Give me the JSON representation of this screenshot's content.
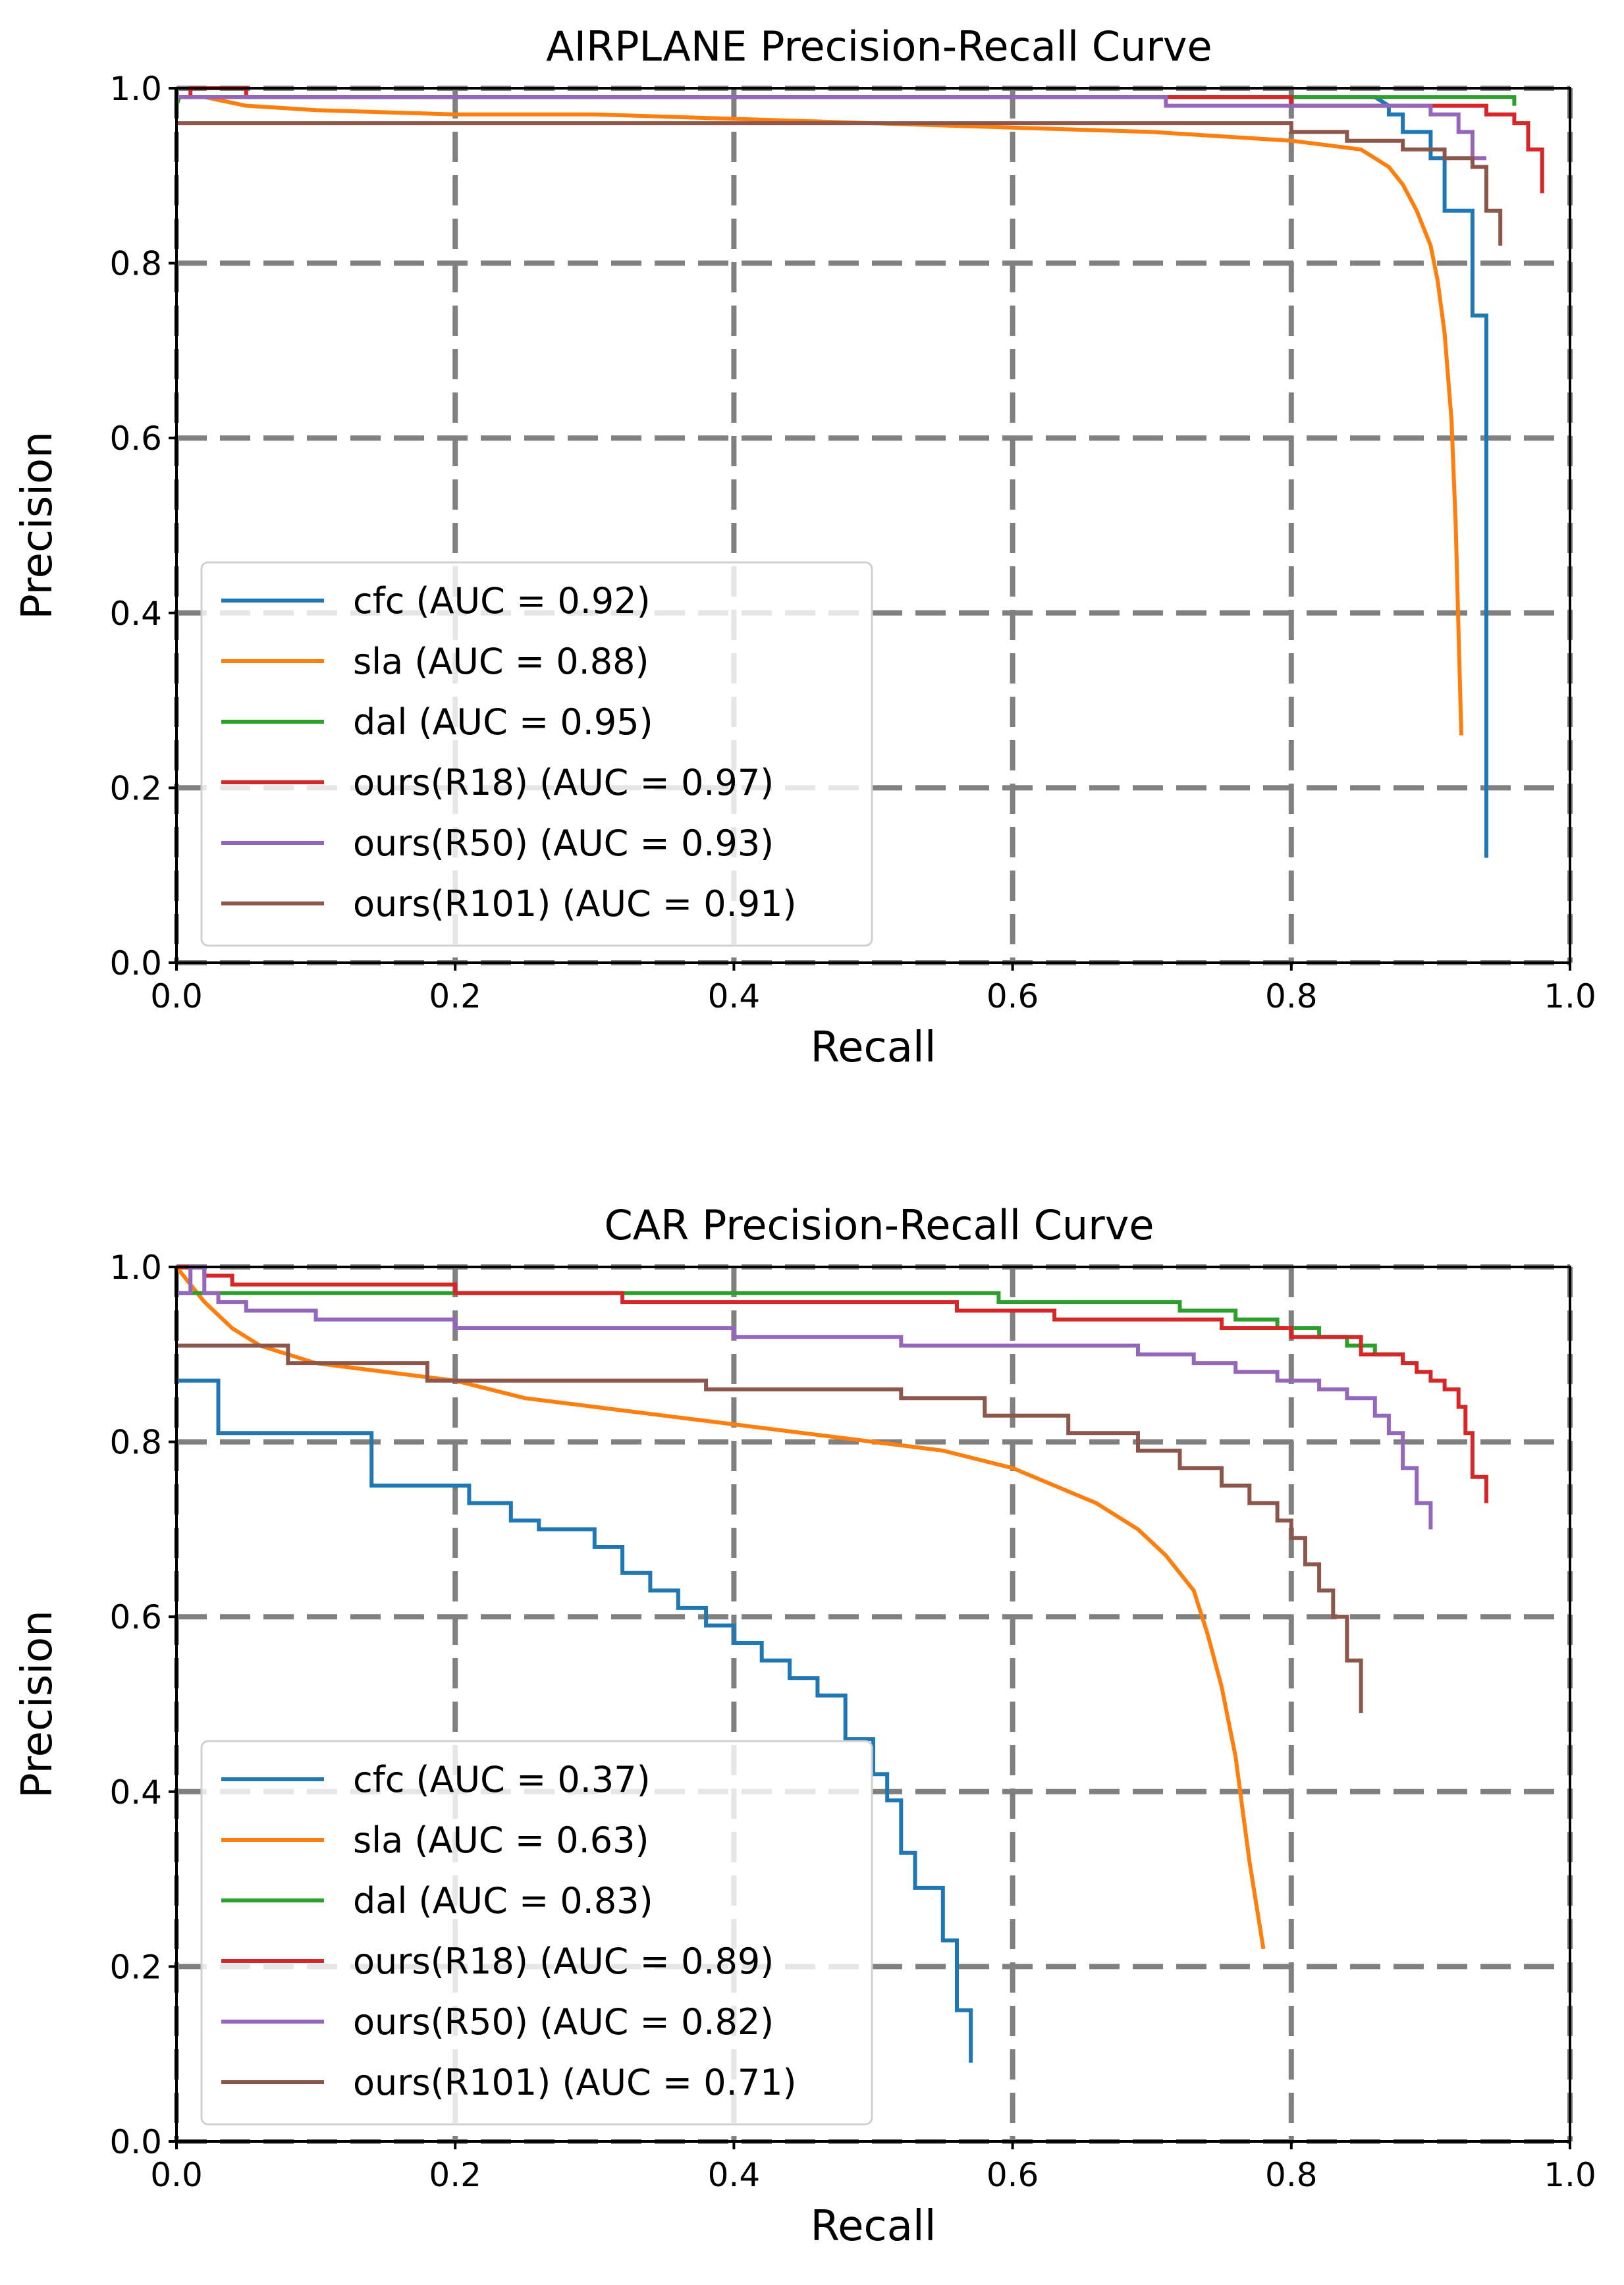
{
  "chart_data": [
    {
      "type": "line",
      "title": "AIRPLANE Precision-Recall Curve",
      "xlabel": "Recall",
      "ylabel": "Precision",
      "xlim": [
        0.0,
        1.0
      ],
      "ylim": [
        0.0,
        1.0
      ],
      "xticks": [
        "0.0",
        "0.2",
        "0.4",
        "0.6",
        "0.8",
        "1.0"
      ],
      "yticks": [
        "0.0",
        "0.2",
        "0.4",
        "0.6",
        "0.8",
        "1.0"
      ],
      "grid": true,
      "legend_position": "lower-left",
      "series": [
        {
          "name": "cfc",
          "legend": "cfc (AUC = 0.92)",
          "color": "#1f77b4",
          "x": [
            0.0,
            0.86,
            0.87,
            0.87,
            0.88,
            0.88,
            0.9,
            0.9,
            0.91,
            0.91,
            0.93,
            0.93,
            0.94,
            0.94
          ],
          "y": [
            0.99,
            0.99,
            0.98,
            0.97,
            0.97,
            0.95,
            0.95,
            0.92,
            0.92,
            0.86,
            0.86,
            0.74,
            0.74,
            0.12
          ]
        },
        {
          "name": "sla",
          "legend": "sla (AUC = 0.88)",
          "color": "#ff7f0e",
          "x": [
            0.0,
            0.02,
            0.05,
            0.1,
            0.2,
            0.3,
            0.4,
            0.5,
            0.6,
            0.7,
            0.8,
            0.85,
            0.87,
            0.88,
            0.89,
            0.9,
            0.905,
            0.91,
            0.915,
            0.918,
            0.92,
            0.922
          ],
          "y": [
            0.99,
            0.99,
            0.98,
            0.975,
            0.97,
            0.97,
            0.965,
            0.96,
            0.955,
            0.95,
            0.94,
            0.93,
            0.91,
            0.89,
            0.86,
            0.82,
            0.78,
            0.72,
            0.62,
            0.5,
            0.38,
            0.26
          ]
        },
        {
          "name": "dal",
          "legend": "dal (AUC = 0.95)",
          "color": "#2ca02c",
          "x": [
            0.0,
            0.002,
            0.96,
            0.96
          ],
          "y": [
            0.98,
            0.99,
            0.99,
            0.98
          ]
        },
        {
          "name": "ours(R18)",
          "legend": "ours(R18) (AUC = 0.97)",
          "color": "#d62728",
          "x": [
            0.0,
            0.01,
            0.01,
            0.05,
            0.05,
            0.71,
            0.71,
            0.8,
            0.8,
            0.94,
            0.94,
            0.96,
            0.96,
            0.97,
            0.97,
            0.98,
            0.98
          ],
          "y": [
            0.99,
            0.99,
            1.0,
            1.0,
            0.99,
            0.99,
            0.99,
            0.99,
            0.98,
            0.98,
            0.97,
            0.97,
            0.96,
            0.96,
            0.93,
            0.93,
            0.88
          ]
        },
        {
          "name": "ours(R50)",
          "legend": "ours(R50) (AUC = 0.93)",
          "color": "#9467bd",
          "x": [
            0.0,
            0.71,
            0.71,
            0.87,
            0.87,
            0.9,
            0.9,
            0.92,
            0.92,
            0.93,
            0.93,
            0.94
          ],
          "y": [
            0.99,
            0.99,
            0.98,
            0.98,
            0.98,
            0.98,
            0.97,
            0.97,
            0.95,
            0.95,
            0.92,
            0.92
          ]
        },
        {
          "name": "ours(R101)",
          "legend": "ours(R101) (AUC = 0.91)",
          "color": "#8c564b",
          "x": [
            0.0,
            0.8,
            0.8,
            0.84,
            0.84,
            0.88,
            0.88,
            0.91,
            0.91,
            0.93,
            0.93,
            0.94,
            0.94,
            0.95,
            0.95
          ],
          "y": [
            0.96,
            0.96,
            0.95,
            0.95,
            0.94,
            0.94,
            0.93,
            0.93,
            0.92,
            0.92,
            0.91,
            0.91,
            0.86,
            0.86,
            0.82
          ]
        }
      ]
    },
    {
      "type": "line",
      "title": "CAR Precision-Recall Curve",
      "xlabel": "Recall",
      "ylabel": "Precision",
      "xlim": [
        0.0,
        1.0
      ],
      "ylim": [
        0.0,
        1.0
      ],
      "xticks": [
        "0.0",
        "0.2",
        "0.4",
        "0.6",
        "0.8",
        "1.0"
      ],
      "yticks": [
        "0.0",
        "0.2",
        "0.4",
        "0.6",
        "0.8",
        "1.0"
      ],
      "grid": true,
      "legend_position": "lower-left",
      "series": [
        {
          "name": "cfc",
          "legend": "cfc (AUC = 0.37)",
          "color": "#1f77b4",
          "x": [
            0.0,
            0.03,
            0.03,
            0.14,
            0.14,
            0.21,
            0.21,
            0.24,
            0.24,
            0.26,
            0.26,
            0.3,
            0.3,
            0.32,
            0.32,
            0.34,
            0.34,
            0.36,
            0.36,
            0.38,
            0.38,
            0.4,
            0.4,
            0.42,
            0.42,
            0.44,
            0.44,
            0.46,
            0.46,
            0.48,
            0.48,
            0.5,
            0.5,
            0.51,
            0.51,
            0.52,
            0.52,
            0.53,
            0.53,
            0.55,
            0.55,
            0.56,
            0.56,
            0.57,
            0.57
          ],
          "y": [
            0.87,
            0.87,
            0.81,
            0.81,
            0.75,
            0.75,
            0.73,
            0.73,
            0.71,
            0.71,
            0.7,
            0.7,
            0.68,
            0.68,
            0.65,
            0.65,
            0.63,
            0.63,
            0.61,
            0.61,
            0.59,
            0.59,
            0.57,
            0.57,
            0.55,
            0.55,
            0.53,
            0.53,
            0.51,
            0.51,
            0.46,
            0.46,
            0.42,
            0.42,
            0.39,
            0.39,
            0.33,
            0.33,
            0.29,
            0.29,
            0.23,
            0.23,
            0.15,
            0.15,
            0.09
          ]
        },
        {
          "name": "sla",
          "legend": "sla (AUC = 0.63)",
          "color": "#ff7f0e",
          "x": [
            0.0,
            0.02,
            0.04,
            0.06,
            0.08,
            0.1,
            0.15,
            0.2,
            0.25,
            0.3,
            0.35,
            0.4,
            0.45,
            0.5,
            0.55,
            0.6,
            0.63,
            0.66,
            0.69,
            0.71,
            0.73,
            0.74,
            0.75,
            0.76,
            0.765,
            0.77,
            0.775,
            0.78
          ],
          "y": [
            1.0,
            0.96,
            0.93,
            0.91,
            0.9,
            0.89,
            0.88,
            0.87,
            0.85,
            0.84,
            0.83,
            0.82,
            0.81,
            0.8,
            0.79,
            0.77,
            0.75,
            0.73,
            0.7,
            0.67,
            0.63,
            0.58,
            0.52,
            0.44,
            0.38,
            0.32,
            0.27,
            0.22
          ]
        },
        {
          "name": "dal",
          "legend": "dal (AUC = 0.83)",
          "color": "#2ca02c",
          "x": [
            0.0,
            0.002,
            0.002,
            0.2,
            0.2,
            0.59,
            0.59,
            0.72,
            0.72,
            0.76,
            0.76,
            0.79,
            0.79,
            0.82,
            0.82,
            0.84,
            0.84,
            0.86,
            0.86,
            0.88,
            0.88
          ],
          "y": [
            0.97,
            0.97,
            0.97,
            0.97,
            0.97,
            0.97,
            0.96,
            0.96,
            0.95,
            0.95,
            0.94,
            0.94,
            0.93,
            0.93,
            0.92,
            0.92,
            0.91,
            0.91,
            0.9,
            0.9,
            0.89
          ]
        },
        {
          "name": "ours(R18)",
          "legend": "ours(R18) (AUC = 0.89)",
          "color": "#d62728",
          "x": [
            0.0,
            0.02,
            0.02,
            0.04,
            0.04,
            0.2,
            0.2,
            0.32,
            0.32,
            0.56,
            0.56,
            0.63,
            0.63,
            0.75,
            0.75,
            0.8,
            0.8,
            0.85,
            0.85,
            0.88,
            0.88,
            0.89,
            0.89,
            0.9,
            0.9,
            0.91,
            0.91,
            0.92,
            0.92,
            0.925,
            0.925,
            0.93,
            0.93,
            0.94,
            0.94
          ],
          "y": [
            1.0,
            1.0,
            0.99,
            0.99,
            0.98,
            0.98,
            0.97,
            0.97,
            0.96,
            0.96,
            0.95,
            0.95,
            0.94,
            0.94,
            0.93,
            0.93,
            0.92,
            0.92,
            0.9,
            0.9,
            0.89,
            0.89,
            0.88,
            0.88,
            0.87,
            0.87,
            0.86,
            0.86,
            0.84,
            0.84,
            0.81,
            0.81,
            0.76,
            0.76,
            0.73
          ]
        },
        {
          "name": "ours(R50)",
          "legend": "ours(R50) (AUC = 0.82)",
          "color": "#9467bd",
          "x": [
            0.0,
            0.01,
            0.01,
            0.02,
            0.02,
            0.03,
            0.03,
            0.05,
            0.05,
            0.1,
            0.1,
            0.2,
            0.2,
            0.4,
            0.4,
            0.52,
            0.52,
            0.69,
            0.69,
            0.73,
            0.73,
            0.76,
            0.76,
            0.79,
            0.79,
            0.82,
            0.82,
            0.84,
            0.84,
            0.86,
            0.86,
            0.87,
            0.87,
            0.88,
            0.88,
            0.89,
            0.89,
            0.9,
            0.9
          ],
          "y": [
            0.97,
            0.97,
            1.0,
            1.0,
            0.97,
            0.97,
            0.96,
            0.96,
            0.95,
            0.95,
            0.94,
            0.94,
            0.93,
            0.93,
            0.92,
            0.92,
            0.91,
            0.91,
            0.9,
            0.9,
            0.89,
            0.89,
            0.88,
            0.88,
            0.87,
            0.87,
            0.86,
            0.86,
            0.85,
            0.85,
            0.83,
            0.83,
            0.81,
            0.81,
            0.77,
            0.77,
            0.73,
            0.73,
            0.7
          ]
        },
        {
          "name": "ours(R101)",
          "legend": "ours(R101) (AUC = 0.71)",
          "color": "#8c564b",
          "x": [
            0.0,
            0.08,
            0.08,
            0.18,
            0.18,
            0.38,
            0.38,
            0.52,
            0.52,
            0.58,
            0.58,
            0.64,
            0.64,
            0.69,
            0.69,
            0.72,
            0.72,
            0.75,
            0.75,
            0.77,
            0.77,
            0.79,
            0.79,
            0.8,
            0.8,
            0.81,
            0.81,
            0.82,
            0.82,
            0.83,
            0.83,
            0.84,
            0.84,
            0.85,
            0.85
          ],
          "y": [
            0.91,
            0.91,
            0.89,
            0.89,
            0.87,
            0.87,
            0.86,
            0.86,
            0.85,
            0.85,
            0.83,
            0.83,
            0.81,
            0.81,
            0.79,
            0.79,
            0.77,
            0.77,
            0.75,
            0.75,
            0.73,
            0.73,
            0.71,
            0.71,
            0.69,
            0.69,
            0.66,
            0.66,
            0.63,
            0.63,
            0.6,
            0.6,
            0.55,
            0.55,
            0.49
          ]
        }
      ]
    }
  ]
}
